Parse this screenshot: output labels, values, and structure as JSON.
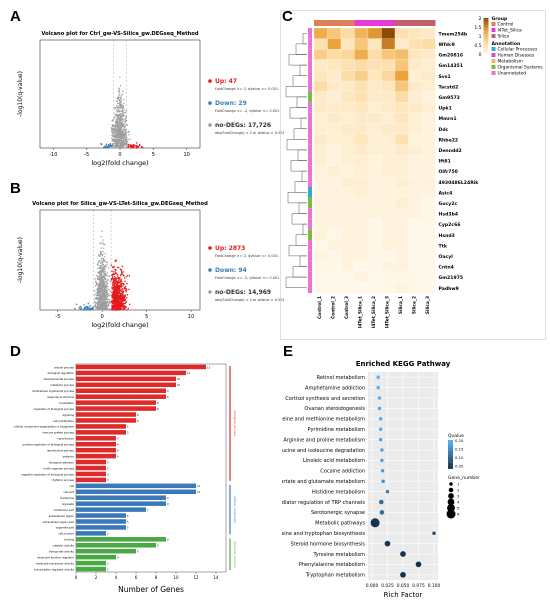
{
  "panel_labels": {
    "a": "A",
    "b": "B",
    "c": "C",
    "d": "D",
    "e": "E"
  },
  "colors": {
    "up": "#e41a1c",
    "down": "#377eb8",
    "nodeg": "#9e9e9e",
    "bar_red": "#e02a2a",
    "bar_blue": "#3a78b8",
    "bar_green": "#4aa845",
    "heat_low": "#fff6e6",
    "heat_high": "#8a4b08"
  },
  "chart_data": [
    {
      "id": "A",
      "type": "scatter",
      "title": "Volcano plot for Ctrl_gw-VS-Silica_gw.DEGseq_Method",
      "xlabel": "log2(fold change)",
      "ylabel": "-log10(q-value)",
      "xlim": [
        -12,
        12
      ],
      "ylim": [
        0,
        400
      ],
      "xticks": [
        "-10",
        "-5",
        "0",
        "5",
        "10"
      ],
      "legend": [
        {
          "name": "Up: 47",
          "sub": "FoldChange >= 2, qValue <= 0.001"
        },
        {
          "name": "Down: 29",
          "sub": "FoldChange <= -2, qValue <= 0.001"
        },
        {
          "name": "no-DEGs: 17,726",
          "sub": "abs(FoldChange) < 2 or qValue > 0.001"
        }
      ]
    },
    {
      "id": "B",
      "type": "scatter",
      "title": "Volcano plot for Silica_gw-VS-LTet-Silica_gw.DEGseq_Method",
      "xlabel": "log2(fold change)",
      "ylabel": "-log10(q-value)",
      "xlim": [
        -7,
        11
      ],
      "ylim": [
        0,
        100
      ],
      "xticks": [
        "-5",
        "0",
        "5",
        "10"
      ],
      "legend": [
        {
          "name": "Up: 2873",
          "sub": "FoldChange >= 2, qValue <= 0.001"
        },
        {
          "name": "Down: 94",
          "sub": "FoldChange <= -2, qValue <= 0.001"
        },
        {
          "name": "no-DEGs: 14,969",
          "sub": "abs(FoldChange) < 2 or qValue > 0.001"
        }
      ]
    },
    {
      "id": "C",
      "type": "heatmap",
      "rows": [
        "Tmem254b",
        "Wfdc9",
        "Gm20816",
        "Gm14351",
        "Svs1",
        "Tacstd2",
        "Gm9573",
        "Upk1",
        "Mmrn1",
        "Ddc",
        "Rhbe22",
        "Denndd2",
        "Ift81",
        "Olfr750",
        "4930486L24Rik",
        "Asic4",
        "Gucy2c",
        "Hsd3b4",
        "Cyp2c66",
        "Hsnd3",
        "Ttk",
        "Oacyl",
        "Cntn4",
        "Gm21975",
        "Padhw9"
      ],
      "columns": [
        "Control_1",
        "Control_2",
        "Control_3",
        "I4Tet_Silica_1",
        "I4Tet_Silica_2",
        "I4Tet_Silica_3",
        "Silica_1",
        "Silica_2",
        "Silica_3"
      ],
      "groups": [
        "Control",
        "Control",
        "Control",
        "I4Tet_Silica",
        "I4Tet_Silica",
        "I4Tet_Silica",
        "Silica",
        "Silica",
        "Silica"
      ],
      "annotations": [
        "Cellular Processes",
        "Human Diseases",
        "Metabolism",
        "Organismal Systems",
        "Unannotated"
      ],
      "scale_ticks": [
        "2",
        "1.5",
        "1",
        "0.5",
        "0"
      ],
      "values": [
        [
          1.2,
          0.9,
          0.6,
          1.1,
          1.4,
          2.0,
          0.5,
          0.4,
          0.3
        ],
        [
          0.5,
          1.3,
          0.4,
          0.9,
          0.4,
          1.6,
          0.3,
          0.5,
          0.6
        ],
        [
          0.8,
          0.6,
          0.7,
          1.2,
          0.6,
          0.9,
          1.0,
          0.4,
          0.3
        ],
        [
          0.3,
          0.4,
          0.5,
          0.6,
          0.5,
          0.5,
          0.9,
          0.3,
          0.2
        ],
        [
          0.4,
          0.3,
          0.6,
          0.8,
          0.4,
          0.7,
          1.3,
          0.2,
          0.3
        ],
        [
          0.6,
          0.3,
          0.3,
          0.5,
          0.3,
          0.4,
          0.9,
          0.3,
          0.2
        ],
        [
          0.3,
          0.2,
          0.4,
          0.5,
          0.3,
          0.3,
          0.6,
          0.2,
          0.1
        ],
        [
          0.3,
          0.3,
          0.3,
          0.4,
          0.2,
          0.3,
          0.4,
          0.3,
          0.2
        ],
        [
          0.2,
          0.3,
          0.2,
          0.3,
          0.3,
          0.2,
          0.4,
          0.2,
          0.1
        ],
        [
          0.2,
          0.2,
          0.3,
          0.3,
          0.2,
          0.3,
          0.3,
          0.2,
          0.1
        ],
        [
          0.3,
          0.2,
          0.2,
          0.4,
          0.2,
          0.2,
          0.5,
          0.1,
          0.1
        ],
        [
          0.2,
          0.1,
          0.2,
          0.3,
          0.2,
          0.2,
          0.3,
          0.2,
          0.1
        ],
        [
          0.2,
          0.1,
          0.2,
          0.2,
          0.1,
          0.2,
          0.2,
          0.1,
          0.1
        ],
        [
          0.1,
          0.2,
          0.1,
          0.2,
          0.1,
          0.2,
          0.2,
          0.1,
          0.1
        ],
        [
          0.1,
          0.1,
          0.2,
          0.2,
          0.1,
          0.1,
          0.2,
          0.1,
          0.1
        ],
        [
          0.1,
          0.1,
          0.1,
          0.2,
          0.1,
          0.1,
          0.1,
          0.1,
          0.1
        ],
        [
          0.1,
          0.1,
          0.1,
          0.1,
          0.1,
          0.1,
          0.2,
          0.1,
          0.0
        ],
        [
          0.1,
          0.1,
          0.1,
          0.1,
          0.1,
          0.1,
          0.1,
          0.1,
          0.0
        ],
        [
          0.1,
          0.1,
          0.1,
          0.1,
          0.0,
          0.1,
          0.1,
          0.0,
          0.0
        ],
        [
          0.1,
          0.0,
          0.1,
          0.1,
          0.0,
          0.1,
          0.1,
          0.0,
          0.0
        ],
        [
          0.0,
          0.1,
          0.1,
          0.1,
          0.0,
          0.1,
          0.1,
          0.0,
          0.0
        ],
        [
          0.1,
          0.0,
          0.1,
          0.1,
          0.0,
          0.0,
          0.1,
          0.0,
          0.0
        ],
        [
          0.0,
          0.0,
          0.1,
          0.0,
          0.0,
          0.1,
          0.1,
          0.0,
          0.0
        ],
        [
          0.0,
          0.0,
          0.0,
          0.1,
          0.0,
          0.0,
          0.0,
          0.0,
          0.0
        ],
        [
          0.0,
          0.0,
          0.0,
          0.0,
          0.0,
          0.0,
          0.1,
          0.0,
          0.0
        ]
      ]
    },
    {
      "id": "D",
      "type": "bar",
      "orientation": "horizontal",
      "xlabel": "Number of Genes",
      "xlim": [
        0,
        15
      ],
      "xticks": [
        "0",
        "2",
        "4",
        "6",
        "8",
        "10",
        "12",
        "14"
      ],
      "series": [
        {
          "name": "biological_process",
          "categories": [
            "cellular process",
            "biological regulation",
            "developmental process",
            "metabolic process",
            "multicellular organismal process",
            "response to stimulus",
            "localization",
            "regulation of biological process",
            "signaling",
            "cell proliferation",
            "cellular component organization or biogenesis",
            "immune system process",
            "reproduction",
            "positive regulation of biological process",
            "reproductive process",
            "behavior",
            "biological adhesion",
            "multi-organism process",
            "negative regulation of biological process",
            "rhythmic process"
          ],
          "values": [
            13,
            11,
            10,
            10,
            9,
            9,
            8,
            8,
            6,
            6,
            5,
            5,
            4,
            4,
            4,
            4,
            3,
            3,
            3,
            3
          ]
        },
        {
          "name": "cellular_component",
          "categories": [
            "cell",
            "cell part",
            "membrane",
            "organelle",
            "membrane part",
            "extracellular region",
            "extracellular region part",
            "organelle part",
            "cell junction"
          ],
          "values": [
            12,
            12,
            9,
            9,
            7,
            5,
            5,
            5,
            3
          ]
        },
        {
          "name": "molecular_function",
          "categories": [
            "binding",
            "catalytic activity",
            "transporter activity",
            "molecular function regulator",
            "molecular transducer activity",
            "transcription regulator activity"
          ],
          "values": [
            9,
            8,
            6,
            4,
            3,
            3
          ]
        }
      ]
    },
    {
      "id": "E",
      "type": "scatter",
      "title": "Enriched KEGG Pathway",
      "xlabel": "Rich Factor",
      "xlim": [
        0.0,
        0.1
      ],
      "xticks": [
        "0.000",
        "0.025",
        "0.050",
        "0.075",
        "0.100"
      ],
      "legend_color_title": "Qvalue",
      "legend_color_ticks": [
        "0.05",
        "0.10",
        "0.15",
        "0.20"
      ],
      "legend_size_title": "Gene_number",
      "legend_size_ticks": [
        "1",
        "2",
        "3",
        "4",
        "5",
        "6"
      ],
      "categories": [
        "Retinol metabolism",
        "Amphetamine addiction",
        "Cortisol synthesis and secretion",
        "Ovarian steroidogenesis",
        "Cysteine and methionine metabolism",
        "Pyrimidine metabolism",
        "Arginine and proline metabolism",
        "Valine, leucine and isoleucine degradation",
        "Linoleic acid metabolism",
        "Cocaine addiction",
        "Alanine, aspartate and glutamate metabolism",
        "Histidine metabolism",
        "Inflammatory mediator regulation of TRP channels",
        "Serotonergic synapse",
        "Metabolic pathways",
        "Phenylalanine, tyrosine and tryptophan biosynthesis",
        "Steroid hormone biosynthesis",
        "Tyrosine metabolism",
        "Phenylalanine metabolism",
        "Tryptophan metabolism"
      ],
      "rich_factor": [
        0.01,
        0.01,
        0.012,
        0.012,
        0.014,
        0.014,
        0.014,
        0.016,
        0.016,
        0.017,
        0.018,
        0.025,
        0.015,
        0.016,
        0.005,
        0.1,
        0.025,
        0.05,
        0.075,
        0.05
      ],
      "qvalue": [
        0.2,
        0.2,
        0.2,
        0.19,
        0.19,
        0.19,
        0.18,
        0.18,
        0.18,
        0.17,
        0.15,
        0.12,
        0.1,
        0.1,
        0.01,
        0.05,
        0.02,
        0.01,
        0.01,
        0.01
      ],
      "gene_number": [
        1,
        1,
        1,
        1,
        1,
        1,
        1,
        1,
        1,
        1,
        1,
        1,
        2,
        2,
        6,
        1,
        3,
        3,
        3,
        3
      ]
    }
  ]
}
